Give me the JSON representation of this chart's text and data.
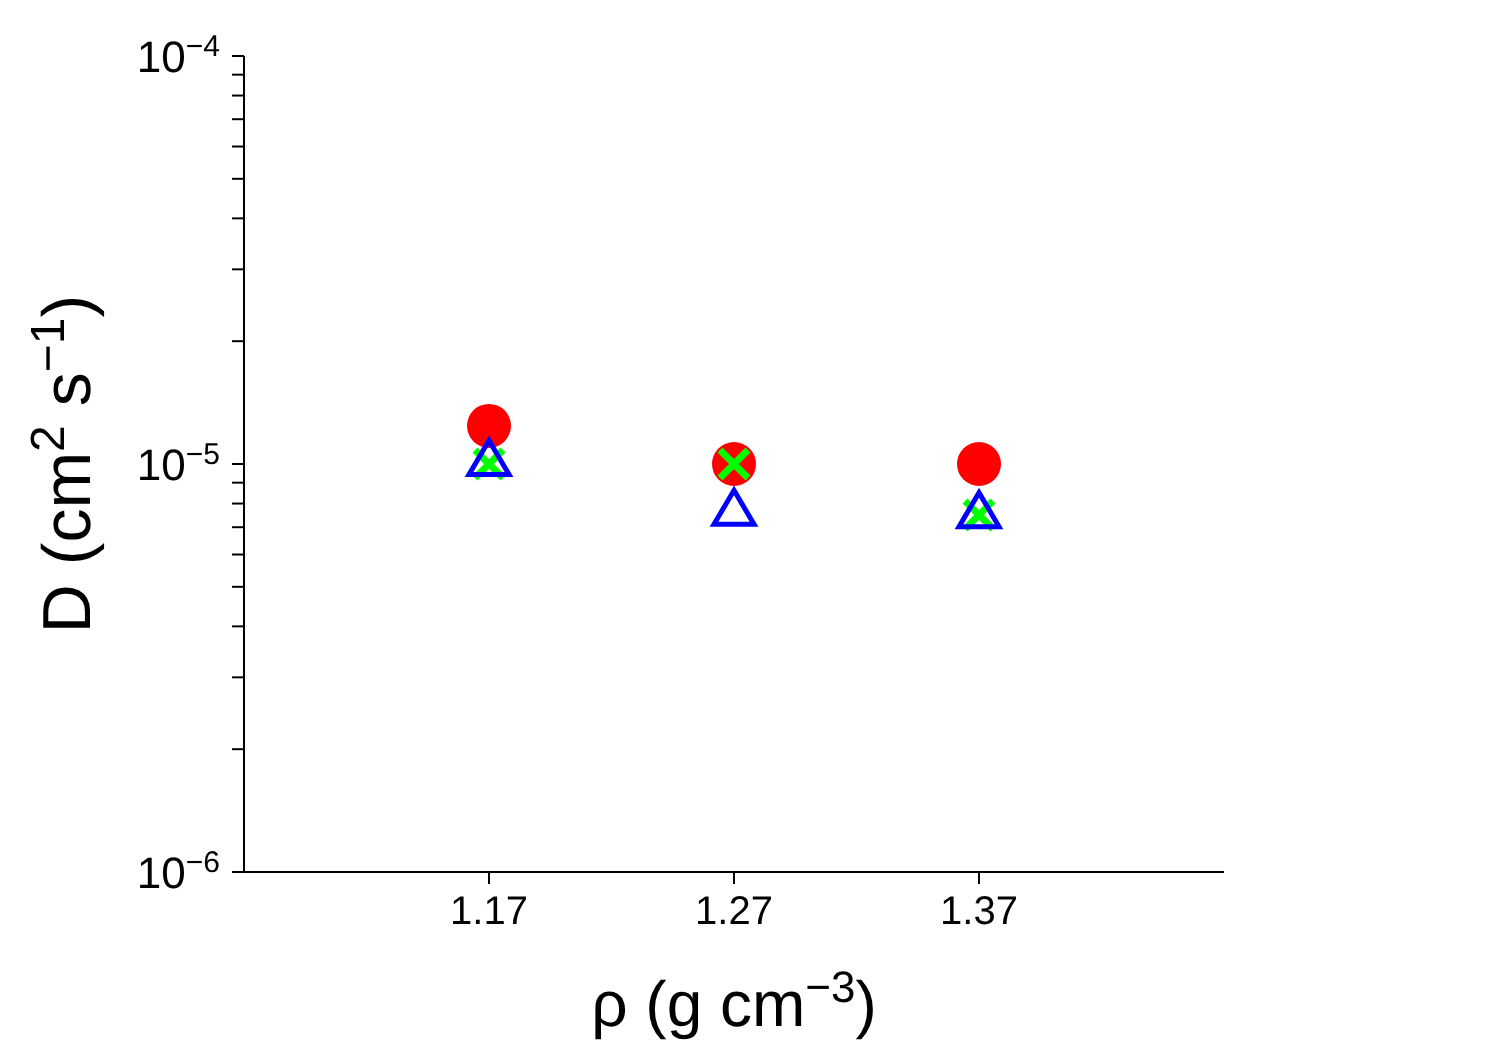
{
  "chart_data": {
    "type": "scatter",
    "xlabel": "ρ (g cm$^{−3}$)",
    "ylabel": "D (cm$^{2}$ s$^{−1}$)",
    "x": [
      1.17,
      1.27,
      1.37
    ],
    "series": [
      {
        "color": "#ff0000",
        "marker": "circle",
        "values": [
          1.24e-05,
          1e-05,
          1e-05
        ]
      },
      {
        "color": "#00ff00",
        "marker": "cross",
        "values": [
          1e-05,
          1e-05,
          7.5e-06
        ]
      },
      {
        "color": "#0000ff",
        "marker": "triangle",
        "values": [
          1.02e-05,
          7.7e-06,
          7.6e-06
        ]
      }
    ],
    "xlim": [
      1.07,
      1.47
    ],
    "xticks": [
      1.17,
      1.27,
      1.37
    ],
    "ylim": [
      1e-06,
      0.0001
    ],
    "log": "y",
    "yticks": [
      {
        "value": 1e-06,
        "label": "10$^{−6}$"
      },
      {
        "value": 2e-06,
        "label": null
      },
      {
        "value": 3e-06,
        "label": null
      },
      {
        "value": 4e-06,
        "label": null
      },
      {
        "value": 5e-06,
        "label": null
      },
      {
        "value": 6e-06,
        "label": null
      },
      {
        "value": 7e-06,
        "label": null
      },
      {
        "value": 8e-06,
        "label": null
      },
      {
        "value": 9e-06,
        "label": null
      },
      {
        "value": 1e-05,
        "label": "10$^{−5}$"
      },
      {
        "value": 2e-05,
        "label": null
      },
      {
        "value": 3e-05,
        "label": null
      },
      {
        "value": 4e-05,
        "label": null
      },
      {
        "value": 5e-05,
        "label": null
      },
      {
        "value": 6e-05,
        "label": null
      },
      {
        "value": 7e-05,
        "label": null
      },
      {
        "value": 8e-05,
        "label": null
      },
      {
        "value": 9e-05,
        "label": null
      },
      {
        "value": 0.0001,
        "label": "10$^{−4}$"
      }
    ]
  }
}
